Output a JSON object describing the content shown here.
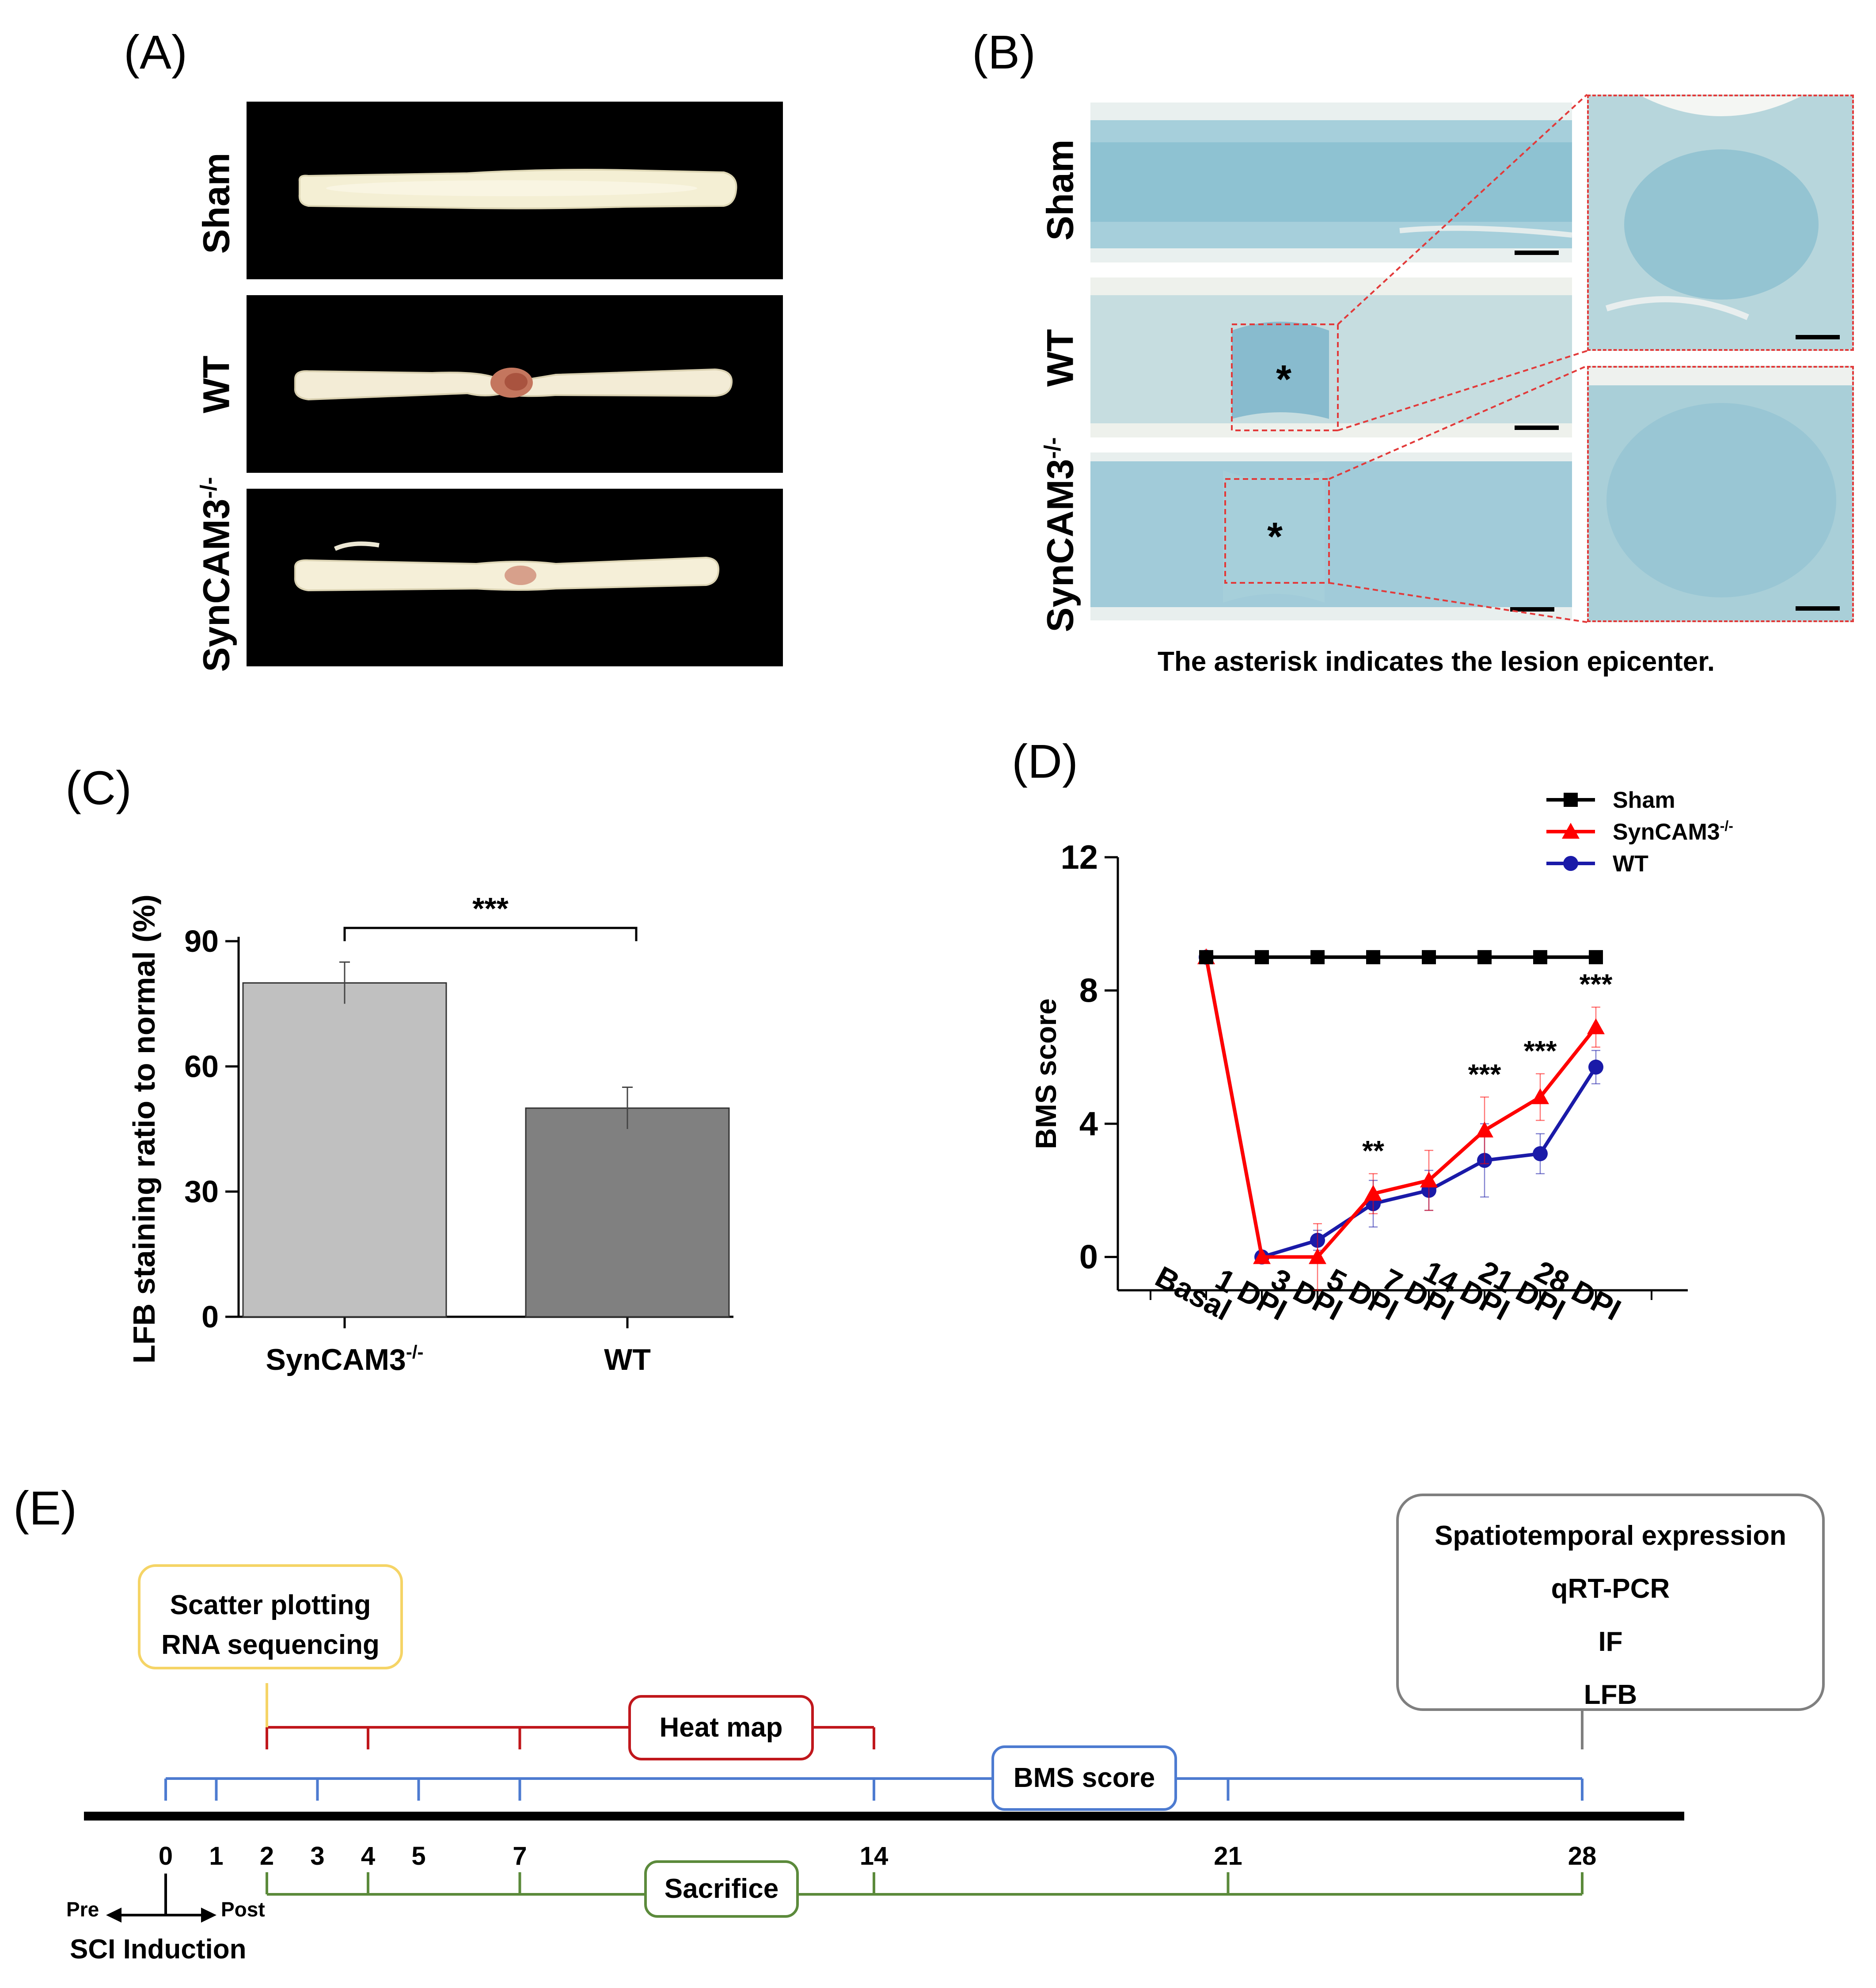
{
  "panelA": {
    "letter": "(A)",
    "rows": [
      {
        "label": "Sham"
      },
      {
        "label": "WT"
      },
      {
        "label": "SynCAM3",
        "sup": "-/-"
      }
    ]
  },
  "panelB": {
    "letter": "(B)",
    "rows": [
      {
        "label": "Sham"
      },
      {
        "label": "WT"
      },
      {
        "label": "SynCAM3",
        "sup": "-/-"
      }
    ],
    "asterisk": "*",
    "caption": "The asterisk indicates the lesion epicenter."
  },
  "panelC": {
    "letter": "(C)",
    "chart_data": {
      "type": "bar",
      "categories": [
        "SynCAM3-/-",
        "WT"
      ],
      "category_labels": [
        {
          "text": "SynCAM3",
          "sup": "-/-"
        },
        {
          "text": "WT",
          "sup": ""
        }
      ],
      "values": [
        80,
        50
      ],
      "errors": [
        5,
        5
      ],
      "colors": [
        "#c0c0c0",
        "#808080"
      ],
      "ylabel": "LFB staining ratio to normal (%)",
      "ylim": [
        0,
        90
      ],
      "yticks": [
        0,
        30,
        60,
        90
      ],
      "significance": "***"
    }
  },
  "panelD": {
    "letter": "(D)",
    "chart_data": {
      "type": "line",
      "categories": [
        "Basal",
        "1 DPI",
        "3 DPI",
        "5 DPI",
        "7 DPI",
        "14 DPI",
        "21 DPI",
        "28 DPI"
      ],
      "ylabel": "BMS score",
      "ylim": [
        -1,
        12
      ],
      "yticks": [
        0,
        4,
        8,
        12
      ],
      "legend_position": "top-right",
      "series": [
        {
          "name": "Sham",
          "sup": "",
          "color": "#000000",
          "marker": "square",
          "values": [
            9,
            9,
            9,
            9,
            9,
            9,
            9,
            9
          ],
          "errors": [
            0,
            0,
            0,
            0,
            0,
            0,
            0,
            0
          ]
        },
        {
          "name": "SynCAM3",
          "sup": "-/-",
          "color": "#ff0000",
          "marker": "triangle",
          "values": [
            9,
            0,
            0,
            1.9,
            2.3,
            3.8,
            4.8,
            6.9
          ],
          "errors": [
            0,
            0,
            1.0,
            0.6,
            0.9,
            1.0,
            0.7,
            0.6
          ]
        },
        {
          "name": "WT",
          "sup": "",
          "color": "#1a1aa8",
          "marker": "circle",
          "values": [
            9,
            0,
            0.5,
            1.6,
            2.0,
            2.9,
            3.1,
            5.7
          ],
          "errors": [
            0,
            0,
            0.3,
            0.7,
            0.6,
            1.1,
            0.6,
            0.5
          ]
        }
      ],
      "annotations": [
        {
          "index": 3,
          "text": "**"
        },
        {
          "index": 5,
          "text": "***"
        },
        {
          "index": 6,
          "text": "***"
        },
        {
          "index": 7,
          "text": "***"
        }
      ]
    }
  },
  "panelE": {
    "letter": "(E)",
    "timeline_days": [
      0,
      1,
      2,
      3,
      4,
      5,
      7,
      14,
      21,
      28
    ],
    "box_yellow": [
      "Scatter plotting",
      "RNA sequencing"
    ],
    "box_gray": [
      "Spatiotemporal expression",
      "qRT-PCR",
      "IF",
      "LFB"
    ],
    "heatmap_label": "Heat map",
    "heatmap_days": [
      2,
      4,
      7,
      14
    ],
    "bms_label": "BMS score",
    "bms_days": [
      0,
      1,
      3,
      5,
      7,
      14,
      21,
      28
    ],
    "sacrifice_label": "Sacrifice",
    "sacrifice_days": [
      2,
      4,
      7,
      14,
      21,
      28
    ],
    "pre_label": "Pre",
    "post_label": "Post",
    "sci_label": "SCI Induction"
  }
}
